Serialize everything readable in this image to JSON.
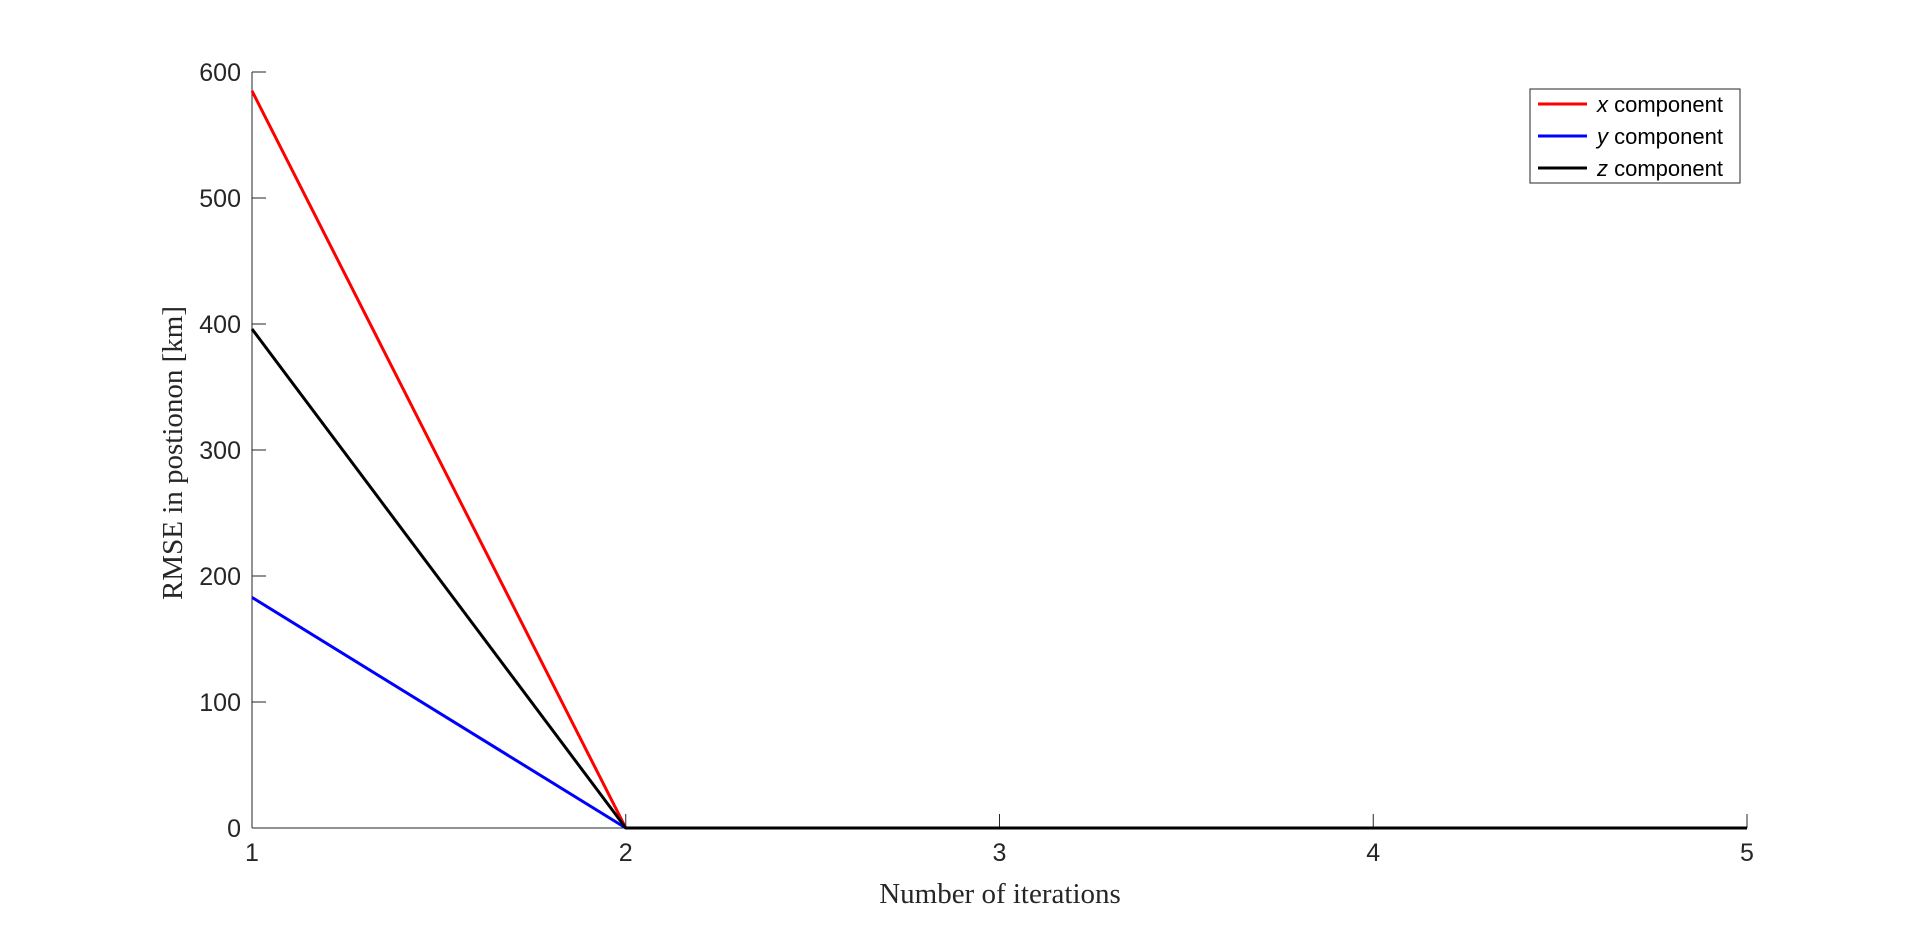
{
  "chart_data": {
    "type": "line",
    "title": "",
    "xlabel": "Number of iterations",
    "ylabel": "RMSE in postionon [km]",
    "x": [
      1,
      2,
      3,
      4,
      5
    ],
    "xlim": [
      1,
      5
    ],
    "ylim": [
      0,
      600
    ],
    "xticks": [
      "1",
      "2",
      "3",
      "4",
      "5"
    ],
    "yticks": [
      "0",
      "100",
      "200",
      "300",
      "400",
      "500",
      "600"
    ],
    "grid": false,
    "legend_position": "top-right",
    "series": [
      {
        "name": "x component",
        "var": "x",
        "suffix": " component",
        "color": "#ff0000",
        "values": [
          585,
          0,
          0,
          0,
          0
        ]
      },
      {
        "name": "y component",
        "var": "y",
        "suffix": " component",
        "color": "#0000ff",
        "values": [
          183,
          0,
          0,
          0,
          0
        ]
      },
      {
        "name": "z component",
        "var": "z",
        "suffix": " component",
        "color": "#000000",
        "values": [
          396,
          0,
          0,
          0,
          0
        ]
      }
    ]
  }
}
